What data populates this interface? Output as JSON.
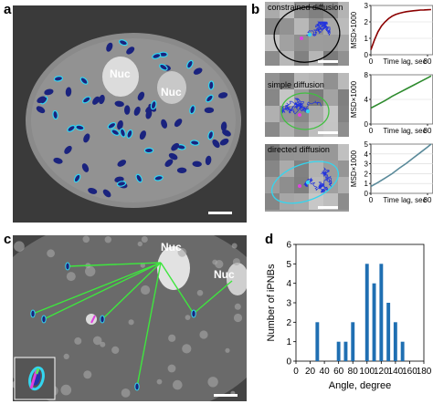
{
  "panel_a": {
    "letter": "a",
    "nucleus_labels": [
      "Nuc",
      "Nuc"
    ]
  },
  "panel_b": {
    "letter": "b",
    "rows": [
      {
        "label": "constrained diffusion",
        "fit_color": "#8b0000",
        "curve": "saturating"
      },
      {
        "label": "simple diffusion",
        "fit_color": "#2e8b2e",
        "curve": "linear"
      },
      {
        "label": "directed diffusion",
        "fit_color": "#5a8a9a",
        "curve": "quadratic"
      }
    ]
  },
  "panel_c": {
    "letter": "c",
    "nucleus_labels": [
      "Nuc",
      "Nuc"
    ]
  },
  "panel_d": {
    "letter": "d"
  },
  "chart_data": [
    {
      "type": "line",
      "panel": "b",
      "row": "constrained diffusion",
      "xlabel": "Time lag, sec",
      "ylabel": "MSD×1000",
      "xlim": [
        0,
        80
      ],
      "ylim": [
        0,
        3
      ],
      "xticks": [
        "0",
        "80"
      ],
      "yticks": [
        "0",
        "1",
        "2",
        "3"
      ],
      "x": [
        0,
        5,
        10,
        15,
        20,
        25,
        30,
        35,
        40,
        45,
        50,
        55,
        60,
        65,
        70,
        75,
        80,
        85
      ],
      "y": [
        0.3,
        0.9,
        1.4,
        1.75,
        2.0,
        2.2,
        2.35,
        2.45,
        2.52,
        2.58,
        2.62,
        2.65,
        2.68,
        2.7,
        2.72,
        2.73,
        2.74,
        2.75
      ]
    },
    {
      "type": "line",
      "panel": "b",
      "row": "simple diffusion",
      "xlabel": "Time lag, sec",
      "ylabel": "MSD×1000",
      "xlim": [
        0,
        80
      ],
      "ylim": [
        0,
        8
      ],
      "xticks": [
        "0",
        "80"
      ],
      "yticks": [
        "0",
        "4",
        "8"
      ],
      "x": [
        0,
        10,
        20,
        30,
        40,
        50,
        60,
        70,
        80,
        85
      ],
      "y": [
        2.6,
        3.2,
        3.8,
        4.5,
        5.1,
        5.7,
        6.3,
        6.9,
        7.5,
        7.8
      ]
    },
    {
      "type": "line",
      "panel": "b",
      "row": "directed diffusion",
      "xlabel": "Time lag, sec",
      "ylabel": "MSD×1000",
      "xlim": [
        0,
        80
      ],
      "ylim": [
        0,
        5
      ],
      "xticks": [
        "0",
        "80"
      ],
      "yticks": [
        "0",
        "1",
        "2",
        "3",
        "4",
        "5"
      ],
      "x": [
        0,
        10,
        20,
        30,
        40,
        50,
        60,
        70,
        80,
        85
      ],
      "y": [
        0.7,
        1.1,
        1.55,
        2.0,
        2.55,
        3.05,
        3.6,
        4.15,
        4.7,
        5.0
      ]
    },
    {
      "type": "bar",
      "panel": "d",
      "xlabel": "Angle, degree",
      "ylabel": "Number of iPNBs",
      "xlim": [
        0,
        180
      ],
      "ylim": [
        0,
        6
      ],
      "xticks": [
        "0",
        "20",
        "40",
        "60",
        "80",
        "100",
        "120",
        "140",
        "160",
        "180"
      ],
      "yticks": [
        "0",
        "1",
        "2",
        "3",
        "4",
        "5",
        "6"
      ],
      "bar_color": "#1f6fb2",
      "x": [
        30,
        60,
        70,
        80,
        100,
        110,
        120,
        130,
        140,
        150
      ],
      "values": [
        2,
        1,
        1,
        2,
        5,
        4,
        5,
        3,
        2,
        1
      ]
    }
  ]
}
